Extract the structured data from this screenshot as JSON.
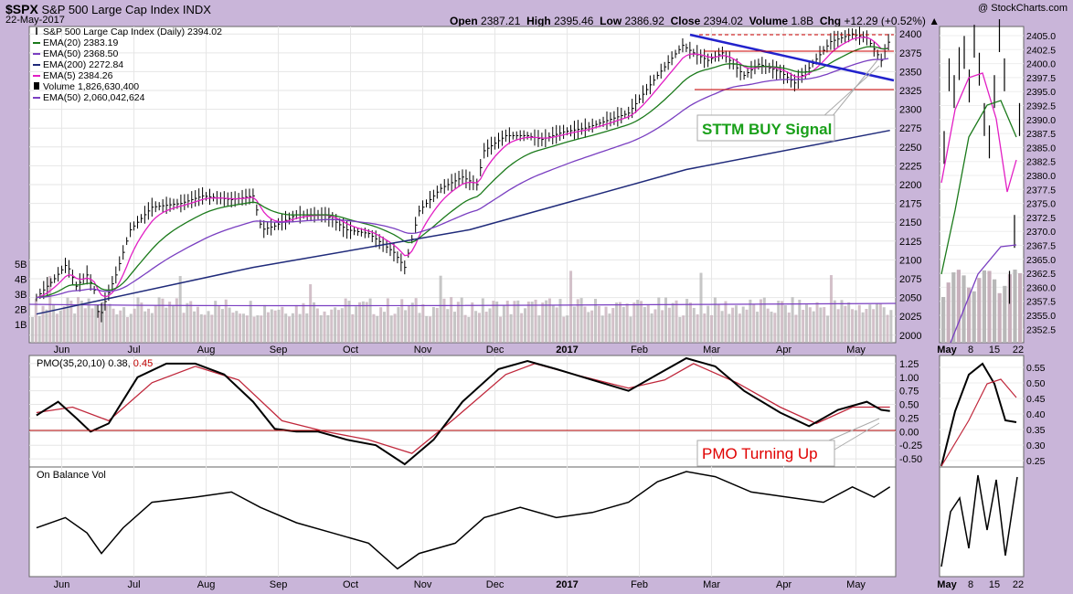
{
  "header": {
    "symbol": "$SPX",
    "name": "S&P 500 Large Cap Index",
    "exchange": "INDX",
    "date": "22-May-2017",
    "watermark": "@ StockCharts.com",
    "quote": {
      "open_label": "Open",
      "open": "2387.21",
      "high_label": "High",
      "high": "2395.46",
      "low_label": "Low",
      "low": "2386.92",
      "close_label": "Close",
      "close": "2394.02",
      "volume_label": "Volume",
      "volume": "1.8B",
      "chg_label": "Chg",
      "chg": "+12.29 (+0.52%)"
    }
  },
  "legend": [
    {
      "text": "S&P 500 Large Cap Index (Daily) 2394.02",
      "color": "#000000",
      "marker": "bar"
    },
    {
      "text": "EMA(20) 2383.19",
      "color": "#1b7a1b",
      "marker": "line"
    },
    {
      "text": "EMA(50) 2368.50",
      "color": "#7a3fc1",
      "marker": "line"
    },
    {
      "text": "EMA(200) 2272.84",
      "color": "#1f2a7a",
      "marker": "line"
    },
    {
      "text": "EMA(5) 2384.26",
      "color": "#e21fc4",
      "marker": "line"
    },
    {
      "text": "Volume 1,826,630,400",
      "color": "#000000",
      "marker": "volume"
    },
    {
      "text": "EMA(50) 2,060,042,624",
      "color": "#7a3fc1",
      "marker": "line"
    }
  ],
  "annotations": {
    "sttm": "STTM BUY Signal",
    "pmo": "PMO Turning Up"
  },
  "pmo_label": {
    "name": "PMO(35,20,10)",
    "value": "0.38,",
    "signal": "0.45"
  },
  "obv_label": "On Balance Vol",
  "colors": {
    "background": "#c9b5d9",
    "panel": "#ffffff",
    "ema20": "#1b7a1b",
    "ema50": "#7a3fc1",
    "ema200": "#1f2a7a",
    "ema5": "#e21fc4",
    "trendline": "#2222cc",
    "volume": "#c8b0bc",
    "sttm_text": "#1aa01a",
    "pmo_text": "#e00000",
    "zero_line": "#b00000"
  },
  "chart_data": {
    "type": "line",
    "x_tick_labels": [
      "Jun",
      "Jul",
      "Aug",
      "Sep",
      "Oct",
      "Nov",
      "Dec",
      "2017",
      "Feb",
      "Mar",
      "Apr",
      "May"
    ],
    "price_axis": {
      "ylim": [
        1990,
        2410
      ],
      "ticks": [
        2000,
        2025,
        2050,
        2075,
        2100,
        2125,
        2150,
        2175,
        2200,
        2225,
        2250,
        2275,
        2300,
        2325,
        2350,
        2375,
        2400
      ]
    },
    "volume_axis": {
      "ticks": [
        "1B",
        "2B",
        "3B",
        "4B",
        "5B"
      ]
    },
    "pmo_axis": {
      "ylim": [
        -0.65,
        1.4
      ],
      "ticks": [
        "-0.50",
        "-0.25",
        "0.00",
        "0.25",
        "0.50",
        "0.75",
        "1.00",
        "1.25"
      ]
    },
    "price_points": [
      {
        "m": 0,
        "v": 2050
      },
      {
        "m": 0.25,
        "v": 2075
      },
      {
        "m": 0.42,
        "v": 2095
      },
      {
        "m": 0.55,
        "v": 2065
      },
      {
        "m": 0.7,
        "v": 2080
      },
      {
        "m": 0.8,
        "v": 2060
      },
      {
        "m": 0.87,
        "v": 2020
      },
      {
        "m": 0.93,
        "v": 2040
      },
      {
        "m": 1.1,
        "v": 2080
      },
      {
        "m": 1.3,
        "v": 2140
      },
      {
        "m": 1.6,
        "v": 2170
      },
      {
        "m": 2.0,
        "v": 2175
      },
      {
        "m": 2.3,
        "v": 2185
      },
      {
        "m": 2.7,
        "v": 2180
      },
      {
        "m": 3.0,
        "v": 2185
      },
      {
        "m": 3.12,
        "v": 2140
      },
      {
        "m": 3.3,
        "v": 2145
      },
      {
        "m": 3.6,
        "v": 2160
      },
      {
        "m": 4.0,
        "v": 2160
      },
      {
        "m": 4.3,
        "v": 2140
      },
      {
        "m": 4.6,
        "v": 2135
      },
      {
        "m": 4.95,
        "v": 2110
      },
      {
        "m": 5.1,
        "v": 2090
      },
      {
        "m": 5.3,
        "v": 2165
      },
      {
        "m": 5.6,
        "v": 2195
      },
      {
        "m": 5.9,
        "v": 2210
      },
      {
        "m": 6.1,
        "v": 2200
      },
      {
        "m": 6.2,
        "v": 2245
      },
      {
        "m": 6.5,
        "v": 2265
      },
      {
        "m": 6.8,
        "v": 2265
      },
      {
        "m": 7.0,
        "v": 2260
      },
      {
        "m": 7.3,
        "v": 2270
      },
      {
        "m": 7.6,
        "v": 2275
      },
      {
        "m": 7.9,
        "v": 2285
      },
      {
        "m": 8.2,
        "v": 2295
      },
      {
        "m": 8.6,
        "v": 2345
      },
      {
        "m": 8.95,
        "v": 2385
      },
      {
        "m": 9.1,
        "v": 2375
      },
      {
        "m": 9.3,
        "v": 2365
      },
      {
        "m": 9.5,
        "v": 2375
      },
      {
        "m": 9.8,
        "v": 2345
      },
      {
        "m": 10.0,
        "v": 2360
      },
      {
        "m": 10.3,
        "v": 2350
      },
      {
        "m": 10.5,
        "v": 2335
      },
      {
        "m": 10.7,
        "v": 2355
      },
      {
        "m": 11.0,
        "v": 2390
      },
      {
        "m": 11.3,
        "v": 2400
      },
      {
        "m": 11.5,
        "v": 2395
      },
      {
        "m": 11.7,
        "v": 2365
      },
      {
        "m": 11.82,
        "v": 2394
      }
    ],
    "ema200_points": [
      {
        "m": 0,
        "v": 2028
      },
      {
        "m": 3,
        "v": 2090
      },
      {
        "m": 6,
        "v": 2140
      },
      {
        "m": 9,
        "v": 2220
      },
      {
        "m": 11.82,
        "v": 2272
      }
    ],
    "pmo_points": [
      {
        "m": 0,
        "v": 0.3
      },
      {
        "m": 0.3,
        "v": 0.55
      },
      {
        "m": 0.55,
        "v": 0.25
      },
      {
        "m": 0.75,
        "v": 0.0
      },
      {
        "m": 1.0,
        "v": 0.15
      },
      {
        "m": 1.4,
        "v": 1.0
      },
      {
        "m": 1.8,
        "v": 1.25
      },
      {
        "m": 2.2,
        "v": 1.25
      },
      {
        "m": 2.6,
        "v": 1.05
      },
      {
        "m": 3.0,
        "v": 0.55
      },
      {
        "m": 3.3,
        "v": 0.05
      },
      {
        "m": 3.6,
        "v": 0.0
      },
      {
        "m": 3.9,
        "v": 0.0
      },
      {
        "m": 4.3,
        "v": -0.15
      },
      {
        "m": 4.7,
        "v": -0.25
      },
      {
        "m": 5.1,
        "v": -0.6
      },
      {
        "m": 5.5,
        "v": -0.15
      },
      {
        "m": 5.9,
        "v": 0.55
      },
      {
        "m": 6.4,
        "v": 1.15
      },
      {
        "m": 6.8,
        "v": 1.3
      },
      {
        "m": 7.2,
        "v": 1.15
      },
      {
        "m": 7.7,
        "v": 0.95
      },
      {
        "m": 8.2,
        "v": 0.75
      },
      {
        "m": 8.6,
        "v": 1.05
      },
      {
        "m": 9.0,
        "v": 1.35
      },
      {
        "m": 9.4,
        "v": 1.2
      },
      {
        "m": 9.8,
        "v": 0.75
      },
      {
        "m": 10.3,
        "v": 0.35
      },
      {
        "m": 10.7,
        "v": 0.1
      },
      {
        "m": 11.1,
        "v": 0.4
      },
      {
        "m": 11.5,
        "v": 0.55
      },
      {
        "m": 11.7,
        "v": 0.4
      },
      {
        "m": 11.82,
        "v": 0.38
      }
    ],
    "pmo_signal_points": [
      {
        "m": 0,
        "v": 0.35
      },
      {
        "m": 0.5,
        "v": 0.45
      },
      {
        "m": 1.0,
        "v": 0.2
      },
      {
        "m": 1.6,
        "v": 0.9
      },
      {
        "m": 2.2,
        "v": 1.2
      },
      {
        "m": 2.8,
        "v": 0.95
      },
      {
        "m": 3.4,
        "v": 0.2
      },
      {
        "m": 4.0,
        "v": 0.0
      },
      {
        "m": 4.6,
        "v": -0.15
      },
      {
        "m": 5.2,
        "v": -0.4
      },
      {
        "m": 5.8,
        "v": 0.25
      },
      {
        "m": 6.5,
        "v": 1.05
      },
      {
        "m": 6.9,
        "v": 1.25
      },
      {
        "m": 7.6,
        "v": 1.0
      },
      {
        "m": 8.2,
        "v": 0.8
      },
      {
        "m": 8.7,
        "v": 0.95
      },
      {
        "m": 9.1,
        "v": 1.25
      },
      {
        "m": 9.7,
        "v": 0.9
      },
      {
        "m": 10.3,
        "v": 0.45
      },
      {
        "m": 10.8,
        "v": 0.15
      },
      {
        "m": 11.3,
        "v": 0.45
      },
      {
        "m": 11.82,
        "v": 0.45
      }
    ],
    "obv_points": [
      {
        "m": 0,
        "v": 0.45
      },
      {
        "m": 0.4,
        "v": 0.55
      },
      {
        "m": 0.7,
        "v": 0.4
      },
      {
        "m": 0.9,
        "v": 0.2
      },
      {
        "m": 1.2,
        "v": 0.45
      },
      {
        "m": 1.6,
        "v": 0.7
      },
      {
        "m": 2.2,
        "v": 0.75
      },
      {
        "m": 2.7,
        "v": 0.8
      },
      {
        "m": 3.1,
        "v": 0.65
      },
      {
        "m": 3.6,
        "v": 0.5
      },
      {
        "m": 4.1,
        "v": 0.4
      },
      {
        "m": 4.6,
        "v": 0.3
      },
      {
        "m": 5.0,
        "v": 0.05
      },
      {
        "m": 5.3,
        "v": 0.2
      },
      {
        "m": 5.8,
        "v": 0.3
      },
      {
        "m": 6.2,
        "v": 0.55
      },
      {
        "m": 6.7,
        "v": 0.65
      },
      {
        "m": 7.2,
        "v": 0.55
      },
      {
        "m": 7.7,
        "v": 0.6
      },
      {
        "m": 8.2,
        "v": 0.7
      },
      {
        "m": 8.6,
        "v": 0.9
      },
      {
        "m": 9.0,
        "v": 1.0
      },
      {
        "m": 9.4,
        "v": 0.95
      },
      {
        "m": 9.9,
        "v": 0.8
      },
      {
        "m": 10.4,
        "v": 0.75
      },
      {
        "m": 10.9,
        "v": 0.7
      },
      {
        "m": 11.3,
        "v": 0.85
      },
      {
        "m": 11.6,
        "v": 0.75
      },
      {
        "m": 11.82,
        "v": 0.85
      }
    ],
    "detail_panel": {
      "x_tick_labels": [
        "May",
        "8",
        "15",
        "22"
      ],
      "price_ticks": [
        "2405.0",
        "2402.5",
        "2400.0",
        "2397.5",
        "2395.0",
        "2392.5",
        "2390.0",
        "2387.5",
        "2385.0",
        "2382.5",
        "2380.0",
        "2377.5",
        "2375.0",
        "2372.5",
        "2370.0",
        "2367.5",
        "2365.0",
        "2362.5",
        "2360.0",
        "2357.5",
        "2355.0",
        "2352.5"
      ],
      "pmo_ticks": [
        "0.55",
        "0.50",
        "0.45",
        "0.40",
        "0.35",
        "0.30",
        "0.25"
      ]
    }
  }
}
